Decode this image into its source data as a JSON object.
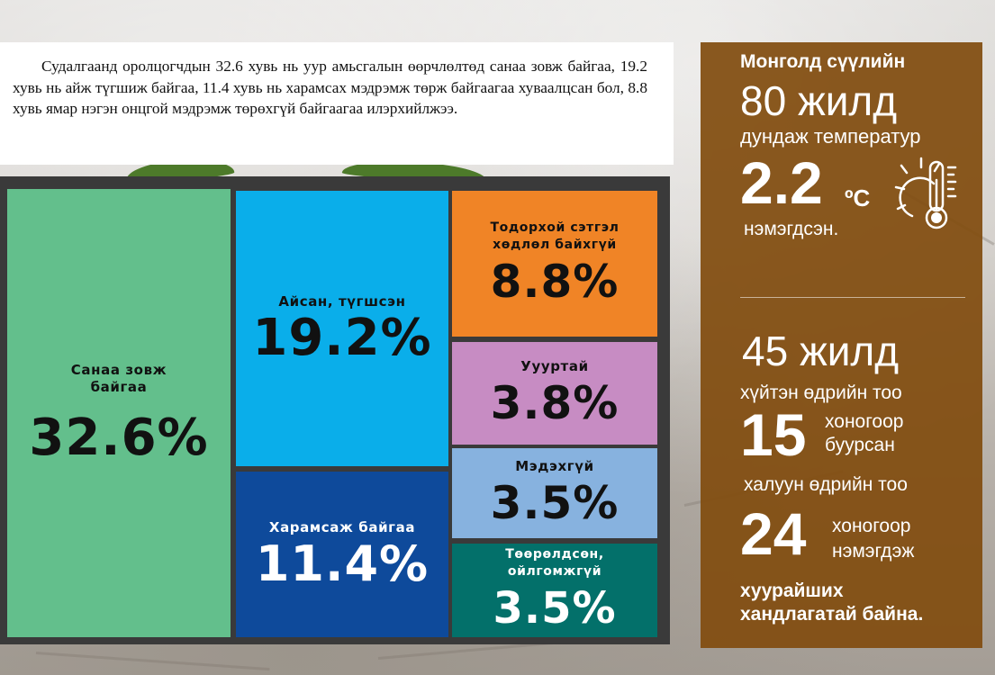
{
  "intro": {
    "text": "Судалгаанд оролцогчдын 32.6 хувь нь уур амьсгалын өөрчлөлтөд санаа зовж байгаа, 19.2 хувь нь айж түгшиж байгаа, 11.4 хувь нь харамсах мэдрэмж төрж байгаагаа хуваалцсан бол, 8.8 хувь ямар нэгэн онцгой мэдрэмж төрөхгүй байгаагаа илэрхийлжээ."
  },
  "chart_data": {
    "type": "treemap",
    "items": [
      {
        "label": "Санаа зовж байгаа",
        "value": 32.6,
        "display": "32.6%",
        "color": "#63bf8c"
      },
      {
        "label": "Айсан, түгшсэн",
        "value": 19.2,
        "display": "19.2%",
        "color": "#0aaeea"
      },
      {
        "label": "Харамсаж байгаа",
        "value": 11.4,
        "display": "11.4%",
        "color": "#0e4a9b"
      },
      {
        "label": "Тодорхой сэтгэл хөдлөл байхгүй",
        "value": 8.8,
        "display": "8.8%",
        "color": "#f08426"
      },
      {
        "label": "Уууртай",
        "value": 3.8,
        "display": "3.8%",
        "color": "#c78cc3"
      },
      {
        "label": "Мэдэхгүй",
        "value": 3.5,
        "display": "3.5%",
        "color": "#87b2df"
      },
      {
        "label": "Төөрөлдсөн, ойлгомжгүй",
        "value": 3.5,
        "display": "3.5%",
        "color": "#03706a"
      }
    ]
  },
  "side": {
    "heading": "Монголд сүүлийн",
    "years80": "80 жилд",
    "avg_temp": "дундаж температур",
    "temp_value": "2.2",
    "temp_unit": "ºC",
    "increased": "нэмэгдсэн.",
    "years45": "45 жилд",
    "cold_days": "хүйтэн өдрийн тоо",
    "cold_value": "15",
    "cold_unit": "хоногоор",
    "cold_change": "буурсан",
    "hot_days": "халуун өдрийн тоо",
    "hot_value": "24",
    "hot_unit": "хоногоор",
    "hot_change": "нэмэгдэж",
    "trend_line1": "хуурайших",
    "trend_line2": "хандлагатай байна.",
    "icon": "sun-thermometer-icon"
  }
}
